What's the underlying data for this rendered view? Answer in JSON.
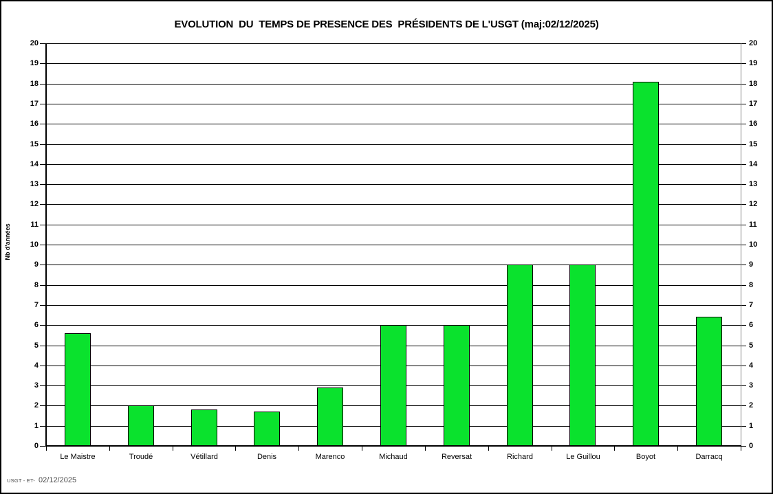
{
  "title": "EVOLUTION  DU  TEMPS DE PRESENCE DES  PRÉSIDENTS DE L'USGT (maj:02/12/2025)",
  "footer": {
    "small": "USGT - ET-",
    "date": "02/12/2025"
  },
  "colors": {
    "bar_fill": "#0ae22d",
    "bar_border": "#000000",
    "gridline": "#000000",
    "right_axis": "#808080",
    "background": "#ffffff"
  },
  "chart_data": {
    "type": "bar",
    "title": "EVOLUTION DU TEMPS DE PRESENCE DES PRÉSIDENTS DE L'USGT (maj:02/12/2025)",
    "categories": [
      "Le Maistre",
      "Troudé",
      "Vétillard",
      "Denis",
      "Marenco",
      "Michaud",
      "Reversat",
      "Richard",
      "Le Guillou",
      "Boyot",
      "Darracq"
    ],
    "values": [
      5.6,
      2.0,
      1.8,
      1.7,
      2.9,
      6.0,
      6.0,
      9.0,
      9.0,
      18.1,
      6.4
    ],
    "xlabel": "",
    "ylabel": "Nb d'années",
    "ylim": [
      0,
      20
    ],
    "ytick_step": 1,
    "grid": true,
    "legend": false,
    "dual_y_axis_labels": true
  }
}
